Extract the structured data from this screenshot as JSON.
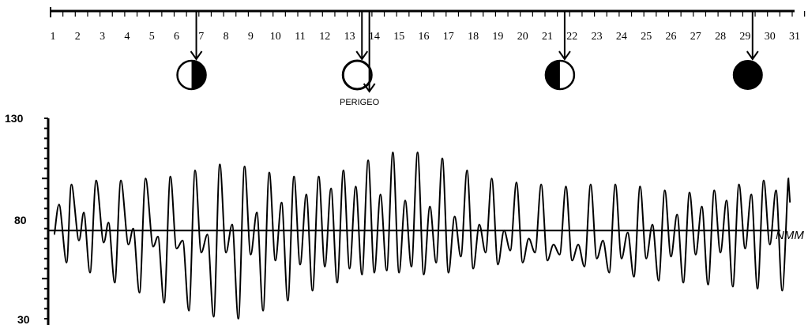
{
  "chart_data": [
    {
      "type": "timeline",
      "days": [
        "1",
        "2",
        "3",
        "4",
        "5",
        "6",
        "7",
        "8",
        "9",
        "10",
        "11",
        "12",
        "13",
        "14",
        "15",
        "16",
        "17",
        "18",
        "19",
        "20",
        "21",
        "22",
        "23",
        "24",
        "25",
        "26",
        "27",
        "28",
        "29",
        "30",
        "31"
      ],
      "events": [
        {
          "day": 6.8,
          "phase": "first-quarter"
        },
        {
          "day": 13.5,
          "phase": "full-moon"
        },
        {
          "day": 21.7,
          "phase": "last-quarter"
        },
        {
          "day": 29.3,
          "phase": "new-moon"
        }
      ],
      "perigee": {
        "day": 13.8,
        "label": "PERIGEO"
      }
    },
    {
      "type": "line",
      "xlim": [
        1,
        31
      ],
      "ylim": [
        30,
        130
      ],
      "yticks": [
        "130",
        "80",
        "30"
      ],
      "reference_line": {
        "y": 74,
        "label": "NMM"
      },
      "peaks": [
        [
          1.05,
          72
        ],
        [
          1.25,
          87
        ],
        [
          1.55,
          58
        ],
        [
          1.75,
          97
        ],
        [
          2.05,
          69
        ],
        [
          2.25,
          83
        ],
        [
          2.5,
          53
        ],
        [
          2.75,
          99
        ],
        [
          3.05,
          68
        ],
        [
          3.25,
          78
        ],
        [
          3.5,
          48
        ],
        [
          3.75,
          99
        ],
        [
          4.05,
          67
        ],
        [
          4.25,
          75
        ],
        [
          4.5,
          43
        ],
        [
          4.75,
          100
        ],
        [
          5.05,
          66
        ],
        [
          5.25,
          71
        ],
        [
          5.5,
          38
        ],
        [
          5.75,
          101
        ],
        [
          6.0,
          65
        ],
        [
          6.25,
          69
        ],
        [
          6.5,
          34
        ],
        [
          6.75,
          104
        ],
        [
          7.0,
          63
        ],
        [
          7.25,
          72
        ],
        [
          7.5,
          31
        ],
        [
          7.75,
          107
        ],
        [
          8.0,
          63
        ],
        [
          8.25,
          77
        ],
        [
          8.5,
          30
        ],
        [
          8.75,
          106
        ],
        [
          9.0,
          62
        ],
        [
          9.25,
          83
        ],
        [
          9.5,
          34
        ],
        [
          9.75,
          103
        ],
        [
          10.0,
          59
        ],
        [
          10.25,
          88
        ],
        [
          10.5,
          39
        ],
        [
          10.75,
          101
        ],
        [
          11.0,
          57
        ],
        [
          11.25,
          92
        ],
        [
          11.5,
          44
        ],
        [
          11.75,
          101
        ],
        [
          12.0,
          56
        ],
        [
          12.25,
          95
        ],
        [
          12.5,
          48
        ],
        [
          12.75,
          104
        ],
        [
          13.0,
          55
        ],
        [
          13.25,
          96
        ],
        [
          13.5,
          52
        ],
        [
          13.75,
          109
        ],
        [
          14.0,
          53
        ],
        [
          14.25,
          92
        ],
        [
          14.5,
          54
        ],
        [
          14.75,
          113
        ],
        [
          15.0,
          53
        ],
        [
          15.25,
          89
        ],
        [
          15.5,
          56
        ],
        [
          15.75,
          113
        ],
        [
          16.0,
          52
        ],
        [
          16.25,
          86
        ],
        [
          16.5,
          58
        ],
        [
          16.75,
          110
        ],
        [
          17.0,
          53
        ],
        [
          17.25,
          81
        ],
        [
          17.5,
          61
        ],
        [
          17.75,
          104
        ],
        [
          18.0,
          55
        ],
        [
          18.25,
          77
        ],
        [
          18.5,
          63
        ],
        [
          18.75,
          100
        ],
        [
          19.0,
          57
        ],
        [
          19.25,
          74
        ],
        [
          19.5,
          64
        ],
        [
          19.75,
          98
        ],
        [
          20.0,
          58
        ],
        [
          20.25,
          70
        ],
        [
          20.5,
          63
        ],
        [
          20.75,
          97
        ],
        [
          21.0,
          59
        ],
        [
          21.25,
          67
        ],
        [
          21.5,
          62
        ],
        [
          21.75,
          96
        ],
        [
          22.0,
          59
        ],
        [
          22.25,
          67
        ],
        [
          22.5,
          56
        ],
        [
          22.75,
          97
        ],
        [
          23.0,
          60
        ],
        [
          23.25,
          69
        ],
        [
          23.5,
          53
        ],
        [
          23.75,
          97
        ],
        [
          24.0,
          60
        ],
        [
          24.25,
          73
        ],
        [
          24.5,
          51
        ],
        [
          24.75,
          96
        ],
        [
          25.0,
          60
        ],
        [
          25.25,
          77
        ],
        [
          25.5,
          49
        ],
        [
          25.75,
          94
        ],
        [
          26.0,
          61
        ],
        [
          26.25,
          82
        ],
        [
          26.5,
          48
        ],
        [
          26.75,
          93
        ],
        [
          27.0,
          62
        ],
        [
          27.25,
          86
        ],
        [
          27.5,
          47
        ],
        [
          27.75,
          94
        ],
        [
          28.0,
          63
        ],
        [
          28.25,
          89
        ],
        [
          28.5,
          46
        ],
        [
          28.75,
          97
        ],
        [
          29.0,
          65
        ],
        [
          29.25,
          92
        ],
        [
          29.5,
          45
        ],
        [
          29.75,
          99
        ],
        [
          30.0,
          67
        ],
        [
          30.25,
          94
        ],
        [
          30.5,
          44
        ],
        [
          30.75,
          100
        ]
      ]
    }
  ],
  "labels": {
    "perigee": "PERIGEO",
    "reference": "NMM",
    "y_top": "130",
    "y_mid": "80",
    "y_bottom": "30"
  }
}
